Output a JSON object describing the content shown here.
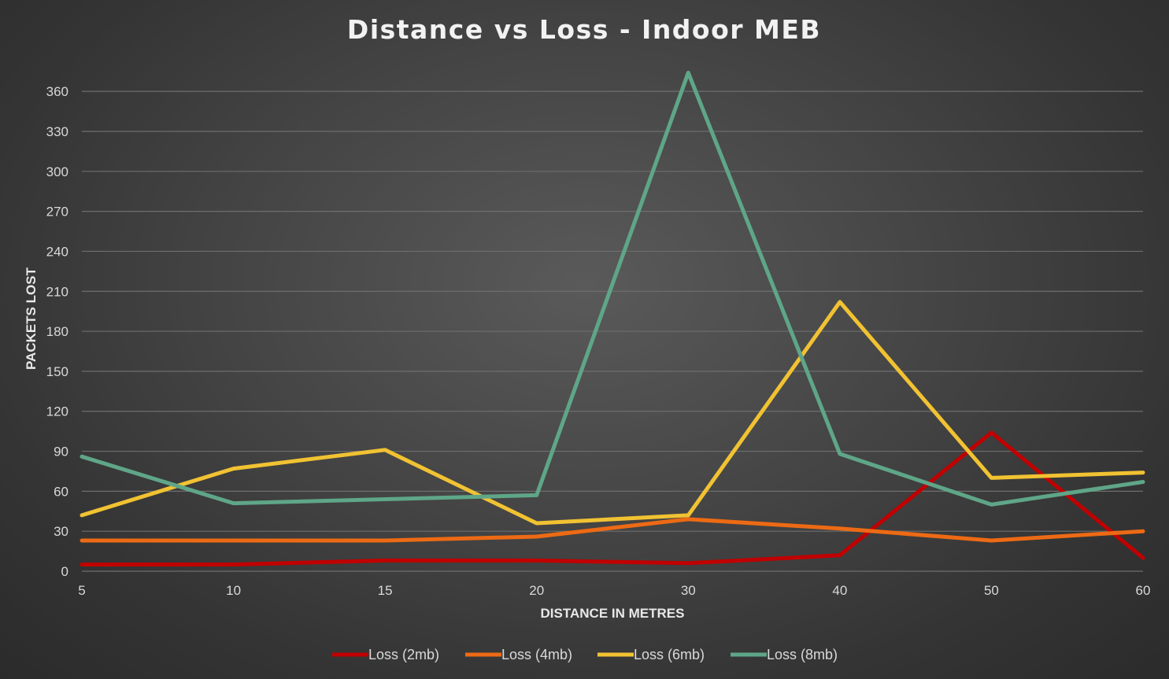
{
  "chart_data": {
    "type": "line",
    "title": "Distance vs Loss - Indoor MEB",
    "xlabel": "DISTANCE IN METRES",
    "ylabel": "PACKETS LOST",
    "categories": [
      "5",
      "10",
      "15",
      "20",
      "30",
      "40",
      "50",
      "60"
    ],
    "ylim": [
      0,
      370
    ],
    "yticks": [
      0,
      30,
      60,
      90,
      120,
      150,
      180,
      210,
      240,
      270,
      300,
      330,
      360
    ],
    "grid": true,
    "legend_position": "bottom",
    "series": [
      {
        "name": "Loss (2mb)",
        "color": "#c00000",
        "values": [
          5,
          5,
          8,
          8,
          6,
          12,
          104,
          10
        ]
      },
      {
        "name": "Loss (4mb)",
        "color": "#ed6a14",
        "values": [
          23,
          23,
          23,
          26,
          39,
          32,
          23,
          30
        ]
      },
      {
        "name": "Loss (6mb)",
        "color": "#f1c232",
        "values": [
          42,
          77,
          91,
          36,
          42,
          202,
          70,
          74
        ]
      },
      {
        "name": "Loss (8mb)",
        "color": "#5fa688",
        "values": [
          86,
          51,
          54,
          57,
          374,
          88,
          50,
          67
        ]
      }
    ]
  }
}
